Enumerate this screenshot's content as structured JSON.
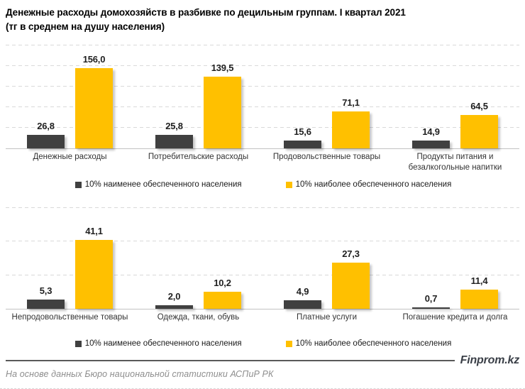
{
  "header": {
    "title_line1": "Денежные расходы домохозяйств в разбивке по децильным группам. I квартал 2021",
    "title_line2": "(тг в среднем на душу населения)"
  },
  "colors": {
    "bar_low_decile": "#404040",
    "bar_high_decile": "#FFC000",
    "gridline": "#d9d9d9",
    "axis_line": "#c2c2c2"
  },
  "chart_data": [
    {
      "type": "bar",
      "title": "",
      "categories": [
        "Денежные расходы",
        "Потребительские расходы",
        "Продовольственные товары",
        "Продукты питания и безалкогольные напитки"
      ],
      "series": [
        {
          "name": "10% наименее обеспеченного населения",
          "color": "#404040",
          "values": [
            26.8,
            25.8,
            15.6,
            14.9
          ],
          "labels": [
            "26,8",
            "25,8",
            "15,6",
            "14,9"
          ]
        },
        {
          "name": "10% наиболее обеспеченного населения",
          "color": "#FFC000",
          "values": [
            156.0,
            139.5,
            71.1,
            64.5
          ],
          "labels": [
            "156,0",
            "139,5",
            "71,1",
            "64,5"
          ]
        }
      ],
      "xlabel": "",
      "ylabel": "",
      "ylim": [
        0,
        200
      ],
      "grid_step": 40,
      "grid": true,
      "legend_position": "bottom"
    },
    {
      "type": "bar",
      "title": "",
      "categories": [
        "Непродовольственные товары",
        "Одежда, ткани, обувь",
        "Платные услуги",
        "Погашение кредита и долга"
      ],
      "series": [
        {
          "name": "10% наименее обеспеченного населения",
          "color": "#404040",
          "values": [
            5.3,
            2.0,
            4.9,
            0.7
          ],
          "labels": [
            "5,3",
            "2,0",
            "4,9",
            "0,7"
          ]
        },
        {
          "name": "10% наиболее обеспеченного населения",
          "color": "#FFC000",
          "values": [
            41.1,
            10.2,
            27.3,
            11.4
          ],
          "labels": [
            "41,1",
            "10,2",
            "27,3",
            "11,4"
          ]
        }
      ],
      "xlabel": "",
      "ylabel": "",
      "ylim": [
        0,
        60
      ],
      "grid_step": 20,
      "grid": true,
      "legend_position": "bottom"
    }
  ],
  "footer": {
    "brand": "Finprom.kz",
    "source": "На основе данных Бюро национальной статистики АСПиР РК"
  }
}
